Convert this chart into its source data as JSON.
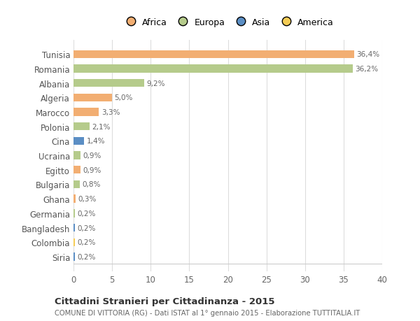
{
  "categories": [
    "Tunisia",
    "Romania",
    "Albania",
    "Algeria",
    "Marocco",
    "Polonia",
    "Cina",
    "Ucraina",
    "Egitto",
    "Bulgaria",
    "Ghana",
    "Germania",
    "Bangladesh",
    "Colombia",
    "Siria"
  ],
  "values": [
    36.4,
    36.2,
    9.2,
    5.0,
    3.3,
    2.1,
    1.4,
    0.9,
    0.9,
    0.8,
    0.3,
    0.2,
    0.2,
    0.2,
    0.2
  ],
  "labels": [
    "36,4%",
    "36,2%",
    "9,2%",
    "5,0%",
    "3,3%",
    "2,1%",
    "1,4%",
    "0,9%",
    "0,9%",
    "0,8%",
    "0,3%",
    "0,2%",
    "0,2%",
    "0,2%",
    "0,2%"
  ],
  "continents": [
    "Africa",
    "Europa",
    "Europa",
    "Africa",
    "Africa",
    "Europa",
    "Asia",
    "Europa",
    "Africa",
    "Europa",
    "Africa",
    "Europa",
    "Asia",
    "America",
    "Asia"
  ],
  "colors": {
    "Africa": "#F2AE72",
    "Europa": "#B5CB8B",
    "Asia": "#5B8EC4",
    "America": "#F5CC55"
  },
  "legend_order": [
    "Africa",
    "Europa",
    "Asia",
    "America"
  ],
  "legend_colors": [
    "#F2AE72",
    "#B5CB8B",
    "#5B8EC4",
    "#F5CC55"
  ],
  "background_color": "#ffffff",
  "title": "Cittadini Stranieri per Cittadinanza - 2015",
  "subtitle": "COMUNE DI VITTORIA (RG) - Dati ISTAT al 1° gennaio 2015 - Elaborazione TUTTITALIA.IT",
  "xlim": [
    0,
    40
  ],
  "xticks": [
    0,
    5,
    10,
    15,
    20,
    25,
    30,
    35,
    40
  ]
}
